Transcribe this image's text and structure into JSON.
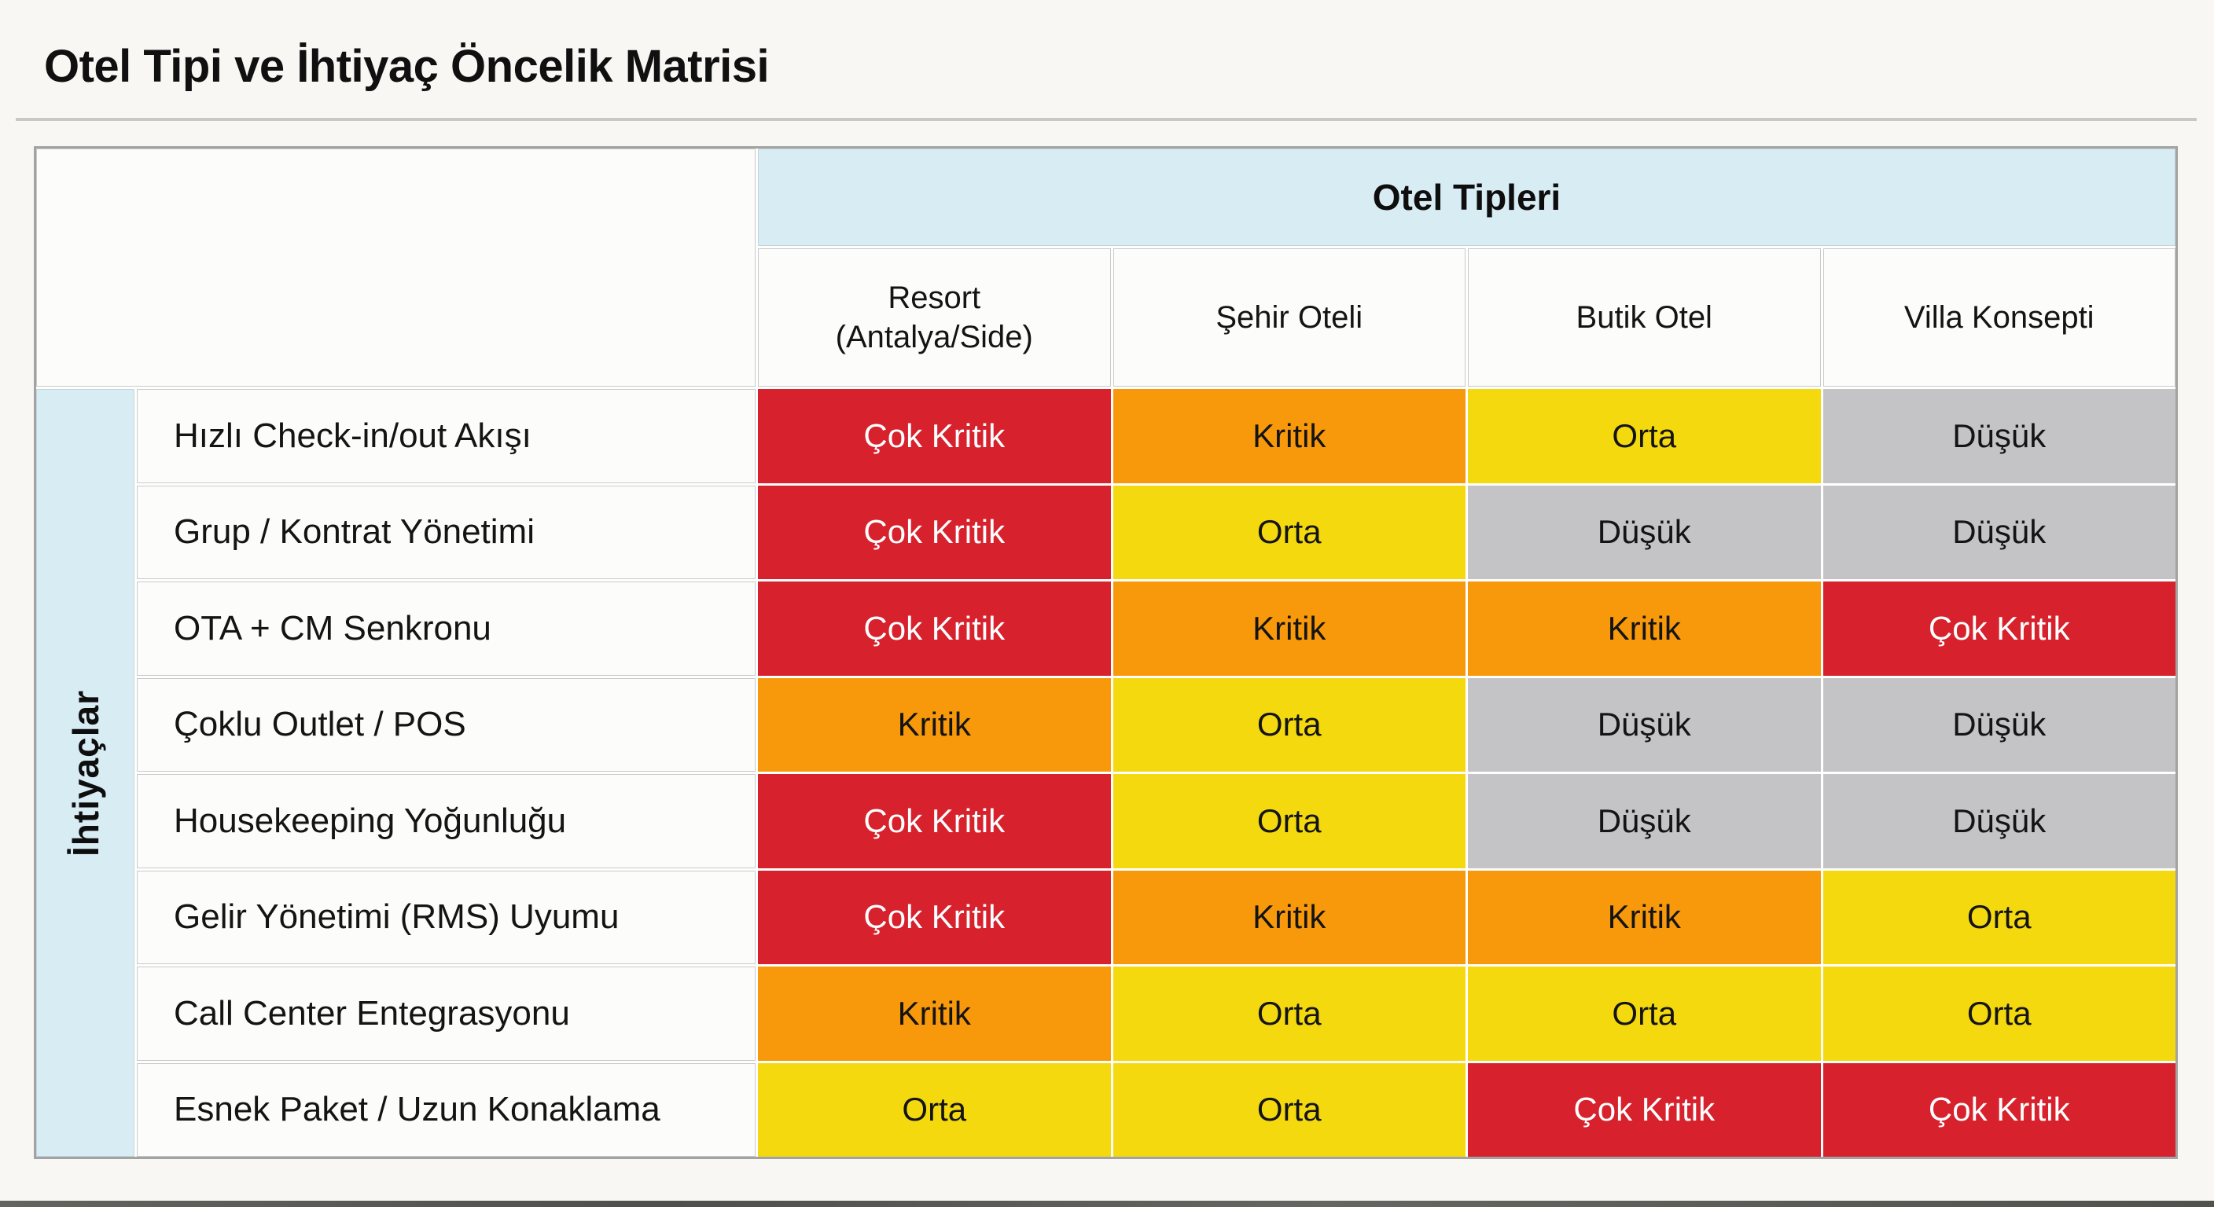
{
  "page": {
    "title": "Otel Tipi ve İhtiyaç Öncelik Matrisi"
  },
  "matrix": {
    "group_header": "Otel Tipleri",
    "row_group_label": "İhtiyaçlar",
    "columns": [
      "Resort\n(Antalya/Side)",
      "Şehir Oteli",
      "Butik Otel",
      "Villa Konsepti"
    ],
    "levels": {
      "cok_kritik": {
        "label": "Çok Kritik",
        "bg": "#D7212D",
        "fg": "#FFFFFF"
      },
      "kritik": {
        "label": "Kritik",
        "bg": "#F8990B",
        "fg": "#141414"
      },
      "orta": {
        "label": "Orta",
        "bg": "#F5D90F",
        "fg": "#141414"
      },
      "dusuk": {
        "label": "Düşük",
        "bg": "#C4C4C6",
        "fg": "#141414"
      }
    },
    "rows": [
      {
        "label": "Hızlı Check-in/out Akışı",
        "values": [
          "cok_kritik",
          "kritik",
          "orta",
          "dusuk"
        ]
      },
      {
        "label": "Grup / Kontrat Yönetimi",
        "values": [
          "cok_kritik",
          "orta",
          "dusuk",
          "dusuk"
        ]
      },
      {
        "label": "OTA + CM Senkronu",
        "values": [
          "cok_kritik",
          "kritik",
          "kritik",
          "cok_kritik"
        ]
      },
      {
        "label": "Çoklu Outlet / POS",
        "values": [
          "kritik",
          "orta",
          "dusuk",
          "dusuk"
        ]
      },
      {
        "label": "Housekeeping Yoğunluğu",
        "values": [
          "cok_kritik",
          "orta",
          "dusuk",
          "dusuk"
        ]
      },
      {
        "label": "Gelir Yönetimi (RMS) Uyumu",
        "values": [
          "cok_kritik",
          "kritik",
          "kritik",
          "orta"
        ]
      },
      {
        "label": "Call Center Entegrasyonu",
        "values": [
          "kritik",
          "orta",
          "orta",
          "orta"
        ]
      },
      {
        "label": "Esnek Paket / Uzun Konaklama",
        "values": [
          "orta",
          "orta",
          "cok_kritik",
          "cok_kritik"
        ]
      }
    ]
  },
  "chart_data": {
    "type": "heatmap",
    "title": "Otel Tipi ve İhtiyaç Öncelik Matrisi",
    "x_axis_label": "Otel Tipleri",
    "y_axis_label": "İhtiyaçlar",
    "x_categories": [
      "Resort (Antalya/Side)",
      "Şehir Oteli",
      "Butik Otel",
      "Villa Konsepti"
    ],
    "y_categories": [
      "Hızlı Check-in/out Akışı",
      "Grup / Kontrat Yönetimi",
      "OTA + CM Senkronu",
      "Çoklu Outlet / POS",
      "Housekeeping Yoğunluğu",
      "Gelir Yönetimi (RMS) Uyumu",
      "Call Center Entegrasyonu",
      "Esnek Paket / Uzun Konaklama"
    ],
    "values": [
      [
        "Çok Kritik",
        "Kritik",
        "Orta",
        "Düşük"
      ],
      [
        "Çok Kritik",
        "Orta",
        "Düşük",
        "Düşük"
      ],
      [
        "Çok Kritik",
        "Kritik",
        "Kritik",
        "Çok Kritik"
      ],
      [
        "Kritik",
        "Orta",
        "Düşük",
        "Düşük"
      ],
      [
        "Çok Kritik",
        "Orta",
        "Düşük",
        "Düşük"
      ],
      [
        "Çok Kritik",
        "Kritik",
        "Kritik",
        "Orta"
      ],
      [
        "Kritik",
        "Orta",
        "Orta",
        "Orta"
      ],
      [
        "Orta",
        "Orta",
        "Çok Kritik",
        "Çok Kritik"
      ]
    ],
    "scale_order": [
      "Düşük",
      "Orta",
      "Kritik",
      "Çok Kritik"
    ],
    "color_map": {
      "Çok Kritik": "#D7212D",
      "Kritik": "#F8990B",
      "Orta": "#F5D90F",
      "Düşük": "#C4C4C6"
    },
    "header_fill": "#D8ECF4",
    "grid": true,
    "legend_position": "none"
  }
}
